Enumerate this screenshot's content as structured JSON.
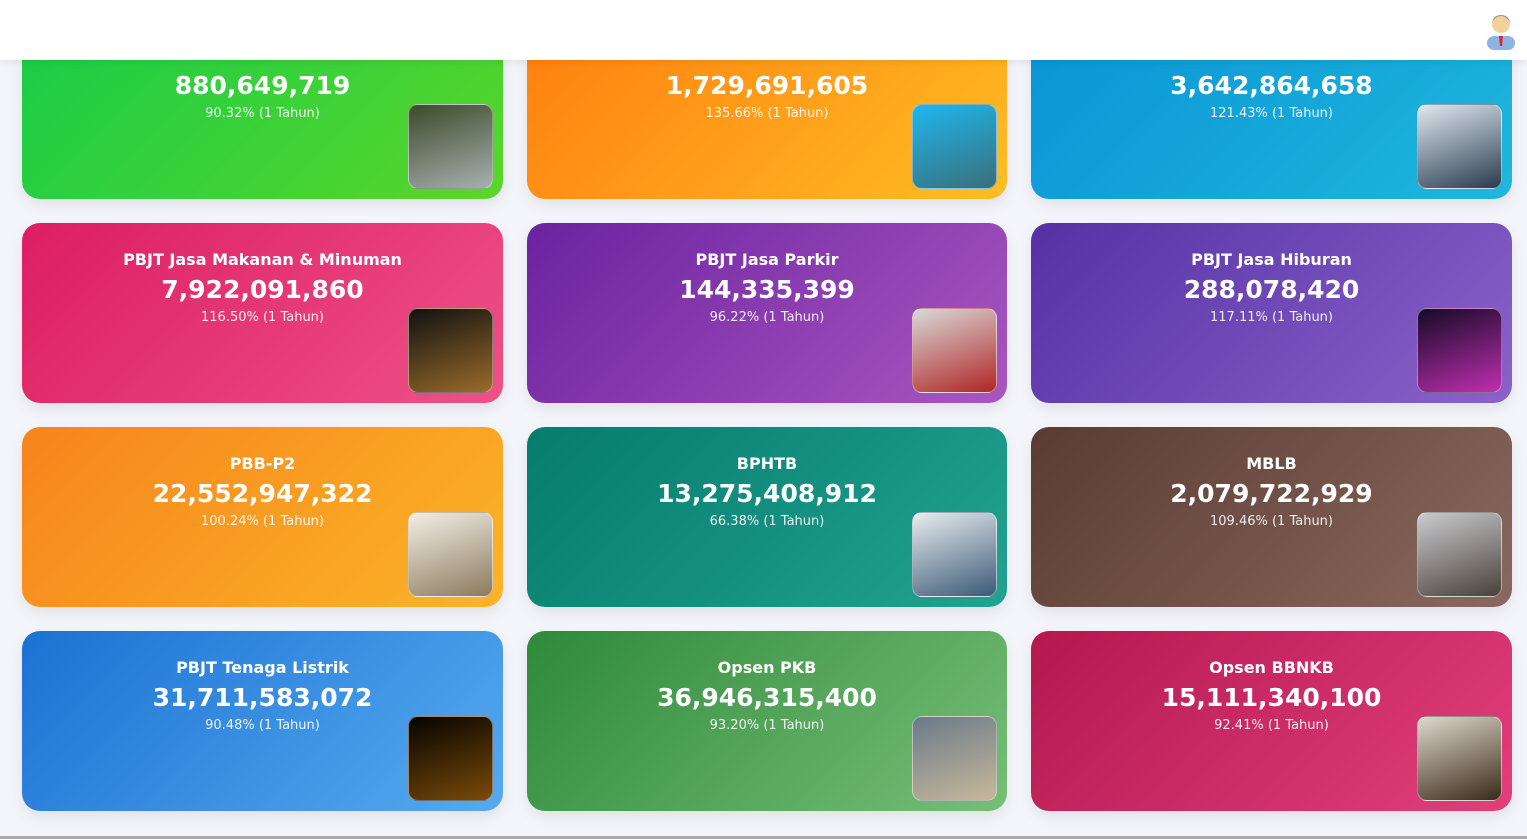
{
  "header": {
    "avatar_icon": "user-avatar-icon"
  },
  "cards": [
    {
      "title": "",
      "value": "880,649,719",
      "percent": "90.32% (1 Tahun)",
      "gradient": [
        "#17cc48",
        "#5bd62a"
      ],
      "thumb": [
        "#3b4a2a",
        "#a8b0b0"
      ]
    },
    {
      "title": "",
      "value": "1,729,691,605",
      "percent": "135.66% (1 Tahun)",
      "gradient": [
        "#ff7e0f",
        "#ffbd24"
      ],
      "thumb": [
        "#1fb6ee",
        "#3a6f7a"
      ]
    },
    {
      "title": "",
      "value": "3,642,864,658",
      "percent": "121.43% (1 Tahun)",
      "gradient": [
        "#0a93d6",
        "#1fb7dc"
      ],
      "thumb": [
        "#dfe8f0",
        "#2a3b4e"
      ]
    },
    {
      "title": "PBJT Jasa Makanan & Minuman",
      "value": "7,922,091,860",
      "percent": "116.50% (1 Tahun)",
      "gradient": [
        "#dc1e62",
        "#ee5187"
      ],
      "thumb": [
        "#111111",
        "#9a6b2a"
      ]
    },
    {
      "title": "PBJT Jasa Parkir",
      "value": "144,335,399",
      "percent": "96.22% (1 Tahun)",
      "gradient": [
        "#6c22a0",
        "#a857c0"
      ],
      "thumb": [
        "#d9d9d9",
        "#b02525"
      ]
    },
    {
      "title": "PBJT Jasa Hiburan",
      "value": "288,078,420",
      "percent": "117.11% (1 Tahun)",
      "gradient": [
        "#5531a5",
        "#8a62c9"
      ],
      "thumb": [
        "#140a26",
        "#c02eb0"
      ]
    },
    {
      "title": "PBB-P2",
      "value": "22,552,947,322",
      "percent": "100.24% (1 Tahun)",
      "gradient": [
        "#f7841c",
        "#fbb428"
      ],
      "thumb": [
        "#f3efe6",
        "#8b7a5e"
      ]
    },
    {
      "title": "BPHTB",
      "value": "13,275,408,912",
      "percent": "66.38% (1 Tahun)",
      "gradient": [
        "#067c6c",
        "#22a292"
      ],
      "thumb": [
        "#e8ecef",
        "#3b5a77"
      ]
    },
    {
      "title": "MBLB",
      "value": "2,079,722,929",
      "percent": "109.46% (1 Tahun)",
      "gradient": [
        "#5a3c33",
        "#8a685d"
      ],
      "thumb": [
        "#c9ccd0",
        "#4a4038"
      ]
    },
    {
      "title": "PBJT Tenaga Listrik",
      "value": "31,711,583,072",
      "percent": "90.48% (1 Tahun)",
      "gradient": [
        "#1c72d2",
        "#56aaf0"
      ],
      "thumb": [
        "#050300",
        "#7a4a0a"
      ]
    },
    {
      "title": "Opsen PKB",
      "value": "36,946,315,400",
      "percent": "93.20% (1 Tahun)",
      "gradient": [
        "#2e8a3a",
        "#77be78"
      ],
      "thumb": [
        "#6a7a8a",
        "#c8b89a"
      ]
    },
    {
      "title": "Opsen BBNKB",
      "value": "15,111,340,100",
      "percent": "92.41% (1 Tahun)",
      "gradient": [
        "#b4184f",
        "#e23f7b"
      ],
      "thumb": [
        "#ded8cc",
        "#3a2a1a"
      ]
    }
  ]
}
